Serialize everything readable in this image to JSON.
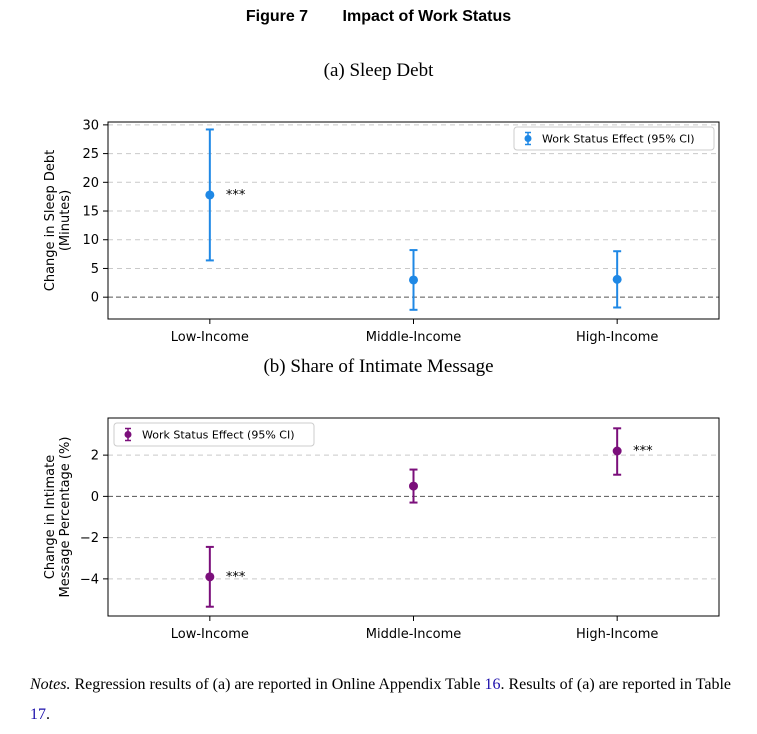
{
  "figure": {
    "number": "Figure 7",
    "title": "Impact of Work Status"
  },
  "notes": {
    "label": "Notes.",
    "text_1": " Regression results of (a) are reported in Online Appendix Table ",
    "ref_1": "16",
    "text_2": ". Results of (a) are reported in Table ",
    "ref_2": "17",
    "text_3": "."
  },
  "chart_data": [
    {
      "type": "scatter",
      "title": "(a) Sleep Debt",
      "xlabel": "",
      "ylabel": [
        "Change in Sleep Debt",
        "(Minutes)"
      ],
      "categories": [
        "Low-Income",
        "Middle-Income",
        "High-Income"
      ],
      "series": [
        {
          "name": "Work Status Effect (95% CI)",
          "color": "#1f88e5",
          "values": [
            17.8,
            3.0,
            3.1
          ],
          "ci_low": [
            6.4,
            -2.2,
            -1.8
          ],
          "ci_high": [
            29.2,
            8.2,
            8.0
          ],
          "annotations": [
            "***",
            "",
            ""
          ]
        }
      ],
      "ylim": [
        -3.8,
        30.5
      ],
      "yticks": [
        0,
        5,
        10,
        15,
        20,
        25,
        30
      ],
      "ytick_labels": [
        "0",
        "5",
        "10",
        "15",
        "20",
        "25",
        "30"
      ],
      "grid": true,
      "zero_line": true,
      "legend_position": "top-right"
    },
    {
      "type": "scatter",
      "title": "(b) Share of Intimate Message",
      "xlabel": "",
      "ylabel": [
        "Change in Intimate",
        "Message Percentage (%)"
      ],
      "categories": [
        "Low-Income",
        "Middle-Income",
        "High-Income"
      ],
      "series": [
        {
          "name": "Work Status Effect (95% CI)",
          "color": "#7b0f7b",
          "values": [
            -3.9,
            0.5,
            2.2
          ],
          "ci_low": [
            -5.35,
            -0.3,
            1.05
          ],
          "ci_high": [
            -2.45,
            1.3,
            3.3
          ],
          "annotations": [
            "***",
            "",
            "***"
          ]
        }
      ],
      "ylim": [
        -5.8,
        3.8
      ],
      "yticks": [
        -4,
        -2,
        0,
        2
      ],
      "ytick_labels": [
        "−4",
        "−2",
        "0",
        "2"
      ],
      "grid": true,
      "zero_line": true,
      "legend_position": "top-left"
    }
  ]
}
